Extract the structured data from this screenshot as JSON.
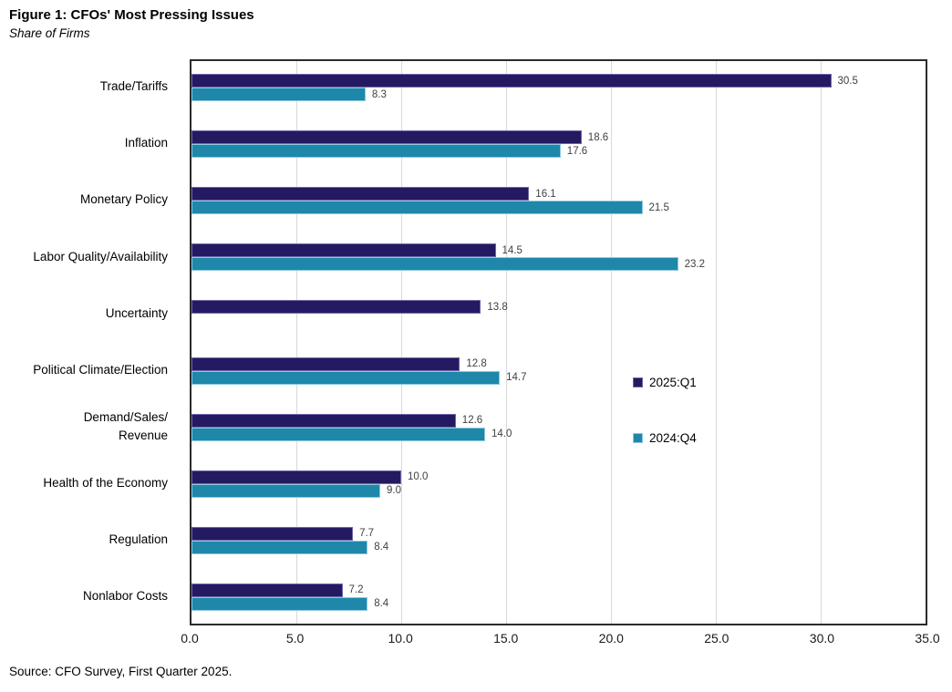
{
  "header": {
    "title": "Figure 1: CFOs' Most Pressing Issues",
    "subtitle": "Share of Firms"
  },
  "footer": {
    "source": "Source: CFO Survey, First Quarter 2025."
  },
  "colors": {
    "series_2025_q1": "#241a62",
    "series_2025_q1_edge": "#6f68a8",
    "series_2024_q4": "#1e87aa",
    "series_2024_q4_edge": "#8ecade",
    "gridline": "#d9d9d9",
    "plot_border": "#2b2b2b",
    "value_label": "#404040"
  },
  "chart_data": {
    "type": "bar",
    "orientation": "horizontal",
    "title": "Figure 1: CFOs' Most Pressing Issues",
    "subtitle": "Share of Firms",
    "xlabel": "",
    "ylabel": "",
    "xlim": [
      0,
      35
    ],
    "x_ticks": [
      "0.0",
      "5.0",
      "10.0",
      "15.0",
      "20.0",
      "25.0",
      "30.0",
      "35.0"
    ],
    "grid": true,
    "value_labels": true,
    "legend_position": "inside-middle-right",
    "categories": [
      "Trade/Tariffs",
      "Inflation",
      "Monetary Policy",
      "Labor Quality/Availability",
      "Uncertainty",
      "Political Climate/Election",
      "Demand/Sales/\nRevenue",
      "Health of the Economy",
      "Regulation",
      "Nonlabor Costs"
    ],
    "series": [
      {
        "name": "2025:Q1",
        "color": "#241a62",
        "edge_color": "#6f68a8",
        "values": [
          30.5,
          18.6,
          16.1,
          14.5,
          13.8,
          12.8,
          12.6,
          10.0,
          7.7,
          7.2
        ]
      },
      {
        "name": "2024:Q4",
        "color": "#1e87aa",
        "edge_color": "#8ecade",
        "values": [
          8.3,
          17.6,
          21.5,
          23.2,
          null,
          14.7,
          14.0,
          9.0,
          8.4,
          8.4
        ]
      }
    ]
  }
}
